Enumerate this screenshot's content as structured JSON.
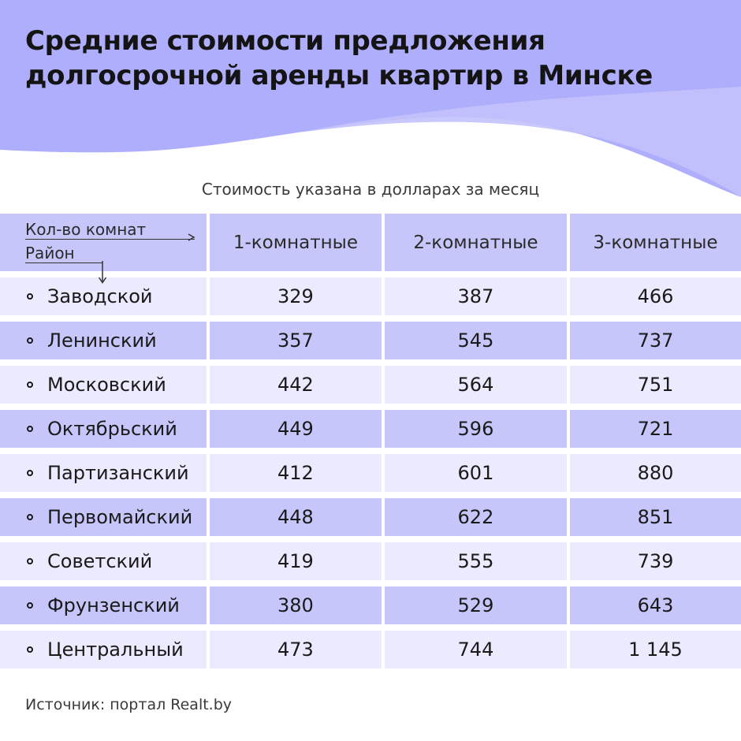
{
  "title_lines": [
    "Средние стоимости предложения",
    "долгосрочной аренды квартир в Минске"
  ],
  "subtitle": "Стоимость указана в долларах за месяц",
  "source": "Источник: портал Realt.by",
  "colors": {
    "header_band": "#afaefc",
    "row_dark": "#c7c6fb",
    "row_light": "#ebeafe"
  },
  "chart_data": {
    "type": "table",
    "corner": {
      "columns_label": "Кол-во комнат",
      "rows_label": "Район"
    },
    "columns": [
      "1-комнатные",
      "2-комнатные",
      "3-комнатные"
    ],
    "rows": [
      {
        "district": "Заводской",
        "values": [
          "329",
          "387",
          "466"
        ]
      },
      {
        "district": "Ленинский",
        "values": [
          "357",
          "545",
          "737"
        ]
      },
      {
        "district": "Московский",
        "values": [
          "442",
          "564",
          "751"
        ]
      },
      {
        "district": "Октябрьский",
        "values": [
          "449",
          "596",
          "721"
        ]
      },
      {
        "district": "Партизанский",
        "values": [
          "412",
          "601",
          "880"
        ]
      },
      {
        "district": "Первомайский",
        "values": [
          "448",
          "622",
          "851"
        ]
      },
      {
        "district": "Советский",
        "values": [
          "419",
          "555",
          "739"
        ]
      },
      {
        "district": "Фрунзенский",
        "values": [
          "380",
          "529",
          "643"
        ]
      },
      {
        "district": "Центральный",
        "values": [
          "473",
          "744",
          "1 145"
        ]
      }
    ]
  }
}
